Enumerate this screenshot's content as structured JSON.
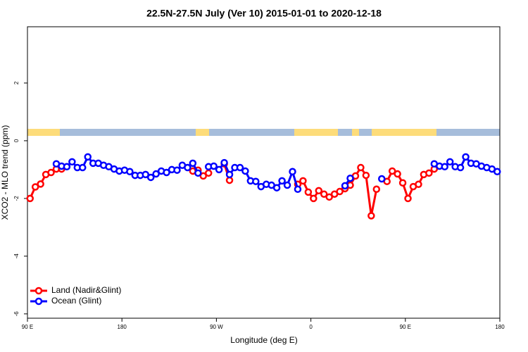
{
  "chart_data": {
    "type": "line",
    "title": "22.5N-27.5N July (Ver 10)   2015-01-01 to 2020-12-18",
    "x_label": "Longitude (deg E)",
    "y_label": "XCO2 - MLO trend (ppm)",
    "x": [
      92.5,
      97.5,
      102.5,
      107.5,
      112.5,
      117.5,
      122.5,
      127.5,
      132.5,
      137.5,
      142.5,
      147.5,
      152.5,
      157.5,
      162.5,
      167.5,
      172.5,
      177.5,
      182.5,
      187.5,
      192.5,
      197.5,
      202.5,
      207.5,
      212.5,
      217.5,
      222.5,
      227.5,
      232.5,
      237.5,
      242.5,
      247.5,
      252.5,
      257.5,
      262.5,
      267.5,
      272.5,
      277.5,
      282.5,
      287.5,
      292.5,
      297.5,
      302.5,
      307.5,
      312.5,
      317.5,
      322.5,
      327.5,
      332.5,
      337.5,
      342.5,
      347.5,
      352.5,
      357.5,
      362.5,
      367.5,
      372.5,
      377.5,
      382.5,
      387.5,
      392.5,
      397.5,
      402.5,
      407.5,
      412.5,
      417.5,
      422.5,
      427.5,
      432.5,
      437.5,
      442.5,
      447.5,
      452.5,
      457.5,
      462.5,
      467.5,
      472.5,
      477.5,
      482.5,
      487.5,
      492.5,
      497.5,
      502.5,
      507.5,
      512.5,
      517.5,
      522.5,
      527.5,
      532.5,
      537.5
    ],
    "series": [
      {
        "name": "Land (Nadir&Glint)",
        "color": "#ff0000",
        "values": [
          -2.0,
          -1.6,
          -1.5,
          -1.17,
          -1.1,
          -0.98,
          -0.98,
          null,
          null,
          null,
          null,
          null,
          null,
          null,
          null,
          null,
          null,
          null,
          null,
          null,
          null,
          null,
          null,
          null,
          null,
          null,
          null,
          null,
          null,
          null,
          null,
          -1.05,
          -1.02,
          -1.22,
          -1.12,
          null,
          null,
          -0.8,
          -1.37,
          null,
          null,
          null,
          null,
          null,
          null,
          null,
          null,
          null,
          null,
          null,
          null,
          -1.51,
          -1.39,
          -1.78,
          -2.0,
          -1.73,
          -1.85,
          -1.95,
          -1.85,
          -1.76,
          -1.66,
          -1.54,
          -1.22,
          -0.93,
          -1.2,
          -2.6,
          -1.68,
          null,
          -1.41,
          -1.05,
          -1.15,
          -1.46,
          -2.0,
          -1.59,
          -1.51,
          -1.17,
          -1.12,
          -0.98,
          null,
          null,
          null,
          null,
          null,
          null,
          null,
          null,
          null,
          null,
          null,
          null
        ]
      },
      {
        "name": "Ocean (Glint)",
        "color": "#0000ff",
        "values": [
          null,
          null,
          null,
          null,
          null,
          -0.8,
          -0.88,
          -0.9,
          -0.73,
          -0.93,
          -0.93,
          -0.56,
          -0.78,
          -0.78,
          -0.85,
          -0.9,
          -0.98,
          -1.05,
          -1.02,
          -1.07,
          -1.2,
          -1.2,
          -1.17,
          -1.27,
          -1.15,
          -1.05,
          -1.1,
          -1.0,
          -1.02,
          -0.85,
          -0.93,
          -0.78,
          -1.12,
          null,
          -0.9,
          -0.88,
          -1.0,
          -0.76,
          -1.17,
          -0.93,
          -0.93,
          -1.05,
          -1.39,
          -1.41,
          -1.59,
          -1.51,
          -1.54,
          -1.63,
          -1.39,
          -1.54,
          -1.07,
          -1.68,
          null,
          null,
          null,
          null,
          null,
          null,
          null,
          null,
          -1.56,
          -1.3,
          null,
          null,
          null,
          null,
          null,
          -1.32,
          null,
          null,
          null,
          null,
          null,
          null,
          null,
          null,
          null,
          -0.8,
          -0.88,
          -0.9,
          -0.73,
          -0.9,
          -0.93,
          -0.56,
          -0.78,
          -0.8,
          -0.88,
          -0.93,
          -0.98,
          -1.07
        ]
      }
    ],
    "xlim": [
      90,
      540
    ],
    "xticks": [
      {
        "value": 90,
        "label": "90 E"
      },
      180,
      {
        "value": 270,
        "label": "90 W"
      },
      {
        "value": 360,
        "label": "0"
      },
      {
        "value": 450,
        "label": "90 E"
      },
      {
        "value": 540,
        "label": "180"
      }
    ],
    "ylim": [
      -6.15,
      3.95
    ],
    "yticks": [
      -6,
      -4,
      -2,
      0,
      2
    ],
    "legend": "bottomleft"
  }
}
